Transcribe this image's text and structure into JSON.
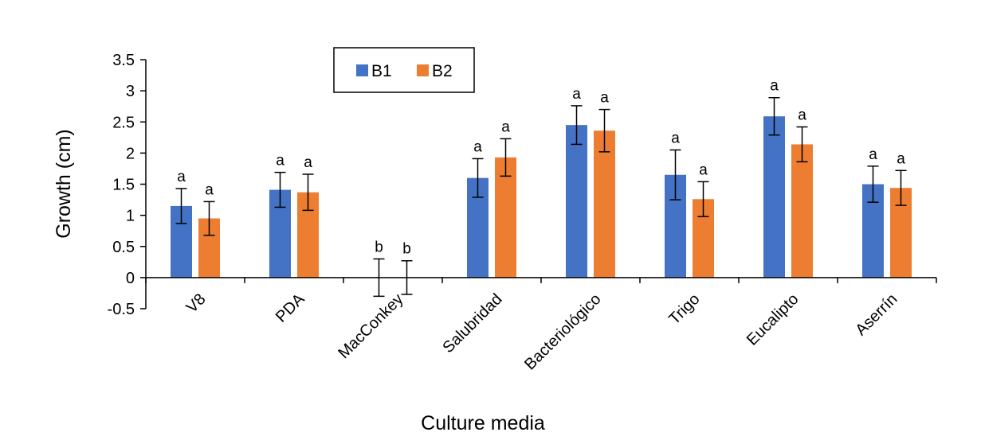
{
  "chart_data": {
    "type": "bar",
    "xlabel": "Culture media",
    "ylabel": "Growth (cm)",
    "ylim": [
      -0.5,
      3.5
    ],
    "yticks": [
      "-0.5",
      "0",
      "0.5",
      "1",
      "1.5",
      "2",
      "2.5",
      "3",
      "3.5"
    ],
    "grid": false,
    "legend_position": "top-left",
    "categories": [
      "V8",
      "PDA",
      "MacConkey",
      "Salubridad",
      "Bacteriológico",
      "Trigo",
      "Eucalipto",
      "Aserrín"
    ],
    "series": [
      {
        "name": "B1",
        "color": "#4472C4",
        "values": [
          1.15,
          1.41,
          0,
          1.6,
          2.45,
          1.65,
          2.59,
          1.5
        ],
        "errors": [
          0.28,
          0.28,
          0.3,
          0.31,
          0.31,
          0.4,
          0.3,
          0.29
        ],
        "labels": [
          "a",
          "a",
          "b",
          "a",
          "a",
          "a",
          "a",
          "a"
        ]
      },
      {
        "name": "B2",
        "color": "#ED7D31",
        "values": [
          0.95,
          1.37,
          0,
          1.93,
          2.36,
          1.26,
          2.14,
          1.44
        ],
        "errors": [
          0.27,
          0.29,
          0.27,
          0.3,
          0.34,
          0.28,
          0.28,
          0.28
        ],
        "labels": [
          "a",
          "a",
          "b",
          "a",
          "a",
          "a",
          "a",
          "a"
        ]
      }
    ]
  }
}
